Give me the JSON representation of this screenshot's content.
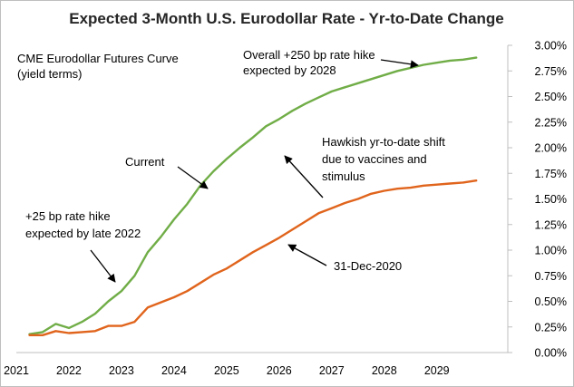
{
  "chart_data": {
    "type": "line",
    "title": "Expected 3-Month U.S. Eurodollar Rate - Yr-to-Date Change",
    "xlabel": "",
    "ylabel": "",
    "xlim": [
      2021,
      2029.85
    ],
    "ylim": [
      0,
      0.03
    ],
    "x_ticks": [
      "2021",
      "2022",
      "2023",
      "2024",
      "2025",
      "2026",
      "2027",
      "2028",
      "2029"
    ],
    "y_ticks": [
      "0.00%",
      "0.25%",
      "0.50%",
      "0.75%",
      "1.00%",
      "1.25%",
      "1.50%",
      "1.75%",
      "2.00%",
      "2.25%",
      "2.50%",
      "2.75%",
      "3.00%"
    ],
    "grid": false,
    "legend": "none",
    "series": [
      {
        "name": "Current",
        "color": "#70ad47",
        "x": [
          2021.25,
          2021.5,
          2021.75,
          2022.0,
          2022.25,
          2022.5,
          2022.75,
          2023.0,
          2023.25,
          2023.5,
          2023.75,
          2024.0,
          2024.25,
          2024.5,
          2024.75,
          2025.0,
          2025.25,
          2025.5,
          2025.75,
          2026.0,
          2026.25,
          2026.5,
          2026.75,
          2027.0,
          2027.25,
          2027.5,
          2027.75,
          2028.0,
          2028.25,
          2028.5,
          2028.75,
          2029.0,
          2029.25,
          2029.5,
          2029.75
        ],
        "values": [
          0.0018,
          0.002,
          0.0028,
          0.0024,
          0.003,
          0.0038,
          0.005,
          0.006,
          0.0075,
          0.0098,
          0.0113,
          0.013,
          0.0145,
          0.0163,
          0.0177,
          0.0189,
          0.02,
          0.021,
          0.0221,
          0.0228,
          0.0236,
          0.0243,
          0.0249,
          0.0255,
          0.0259,
          0.0263,
          0.0267,
          0.0271,
          0.0275,
          0.0278,
          0.0281,
          0.0283,
          0.0285,
          0.0286,
          0.0288
        ]
      },
      {
        "name": "31-Dec-2020",
        "color": "#e0641c",
        "x": [
          2021.25,
          2021.5,
          2021.75,
          2022.0,
          2022.25,
          2022.5,
          2022.75,
          2023.0,
          2023.25,
          2023.5,
          2023.75,
          2024.0,
          2024.25,
          2024.5,
          2024.75,
          2025.0,
          2025.25,
          2025.5,
          2025.75,
          2026.0,
          2026.25,
          2026.5,
          2026.75,
          2027.0,
          2027.25,
          2027.5,
          2027.75,
          2028.0,
          2028.25,
          2028.5,
          2028.75,
          2029.0,
          2029.25,
          2029.5,
          2029.75
        ],
        "values": [
          0.0017,
          0.0017,
          0.0021,
          0.0019,
          0.002,
          0.0021,
          0.0026,
          0.0026,
          0.003,
          0.0044,
          0.0049,
          0.0054,
          0.006,
          0.0068,
          0.0076,
          0.0082,
          0.009,
          0.0098,
          0.0105,
          0.0112,
          0.012,
          0.0128,
          0.0136,
          0.0141,
          0.0146,
          0.015,
          0.0155,
          0.0158,
          0.016,
          0.0161,
          0.0163,
          0.0164,
          0.0165,
          0.0166,
          0.0168
        ]
      }
    ],
    "annotations": [
      {
        "key": "curve_label",
        "lines": [
          "CME Eurodollar Futures Curve",
          "(yield terms)"
        ]
      },
      {
        "key": "overall",
        "lines": [
          "Overall +250 bp rate hike",
          "expected by 2028"
        ]
      },
      {
        "key": "hawkish",
        "lines": [
          "Hawkish yr-to-date  shift",
          "due to vaccines and",
          "stimulus"
        ]
      },
      {
        "key": "current",
        "lines": [
          "Current"
        ]
      },
      {
        "key": "plus25",
        "lines": [
          "+25 bp rate hike",
          "expected by late 2022"
        ]
      },
      {
        "key": "dec2020",
        "lines": [
          "31-Dec-2020"
        ]
      }
    ]
  }
}
